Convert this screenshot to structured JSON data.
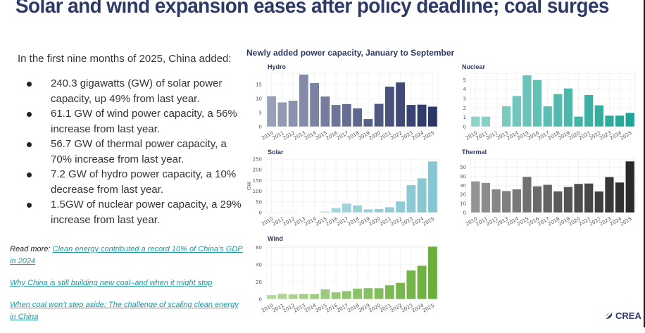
{
  "title": "Solar and wind expansion eases after policy deadline; coal surges",
  "intro": "In the first nine months of 2025, China added:",
  "bullets": [
    "240.3 gigawatts (GW) of solar power capacity, up 49% from last year.",
    "61.1 GW of wind power capacity,  a 56% increase from last year.",
    "56.7 GW of thermal power capacity,  a 70% increase from last year.",
    "7.2 GW of hydro power capacity, a 10% decrease from last year.",
    "1.5GW of nuclear power capacity, a 29% increase from last year."
  ],
  "read_more": {
    "label": "Read more: ",
    "links": [
      "Clean energy contributed a record 10% of China’s GDP in 2024",
      "Why China is still building new coal–and when it might stop",
      "When coal won’t step aside: The challenge of scaling clean energy in China"
    ]
  },
  "logo": {
    "text": "CREA",
    "icon": "crea-leaf-icon"
  },
  "chart_data": [
    {
      "type": "bar",
      "figure_title": "Newly added power capacity, January to September",
      "title": "Hydro",
      "categories": [
        "2010",
        "2011",
        "2012",
        "2013",
        "2014",
        "2015",
        "2016",
        "2017",
        "2018",
        "2019",
        "2020",
        "2021",
        "2022",
        "2023",
        "2024",
        "2025"
      ],
      "values": [
        10.9,
        8.7,
        9.3,
        18.6,
        15.6,
        10.8,
        7.8,
        8.1,
        6.6,
        2.8,
        8.2,
        14.3,
        15.8,
        7.8,
        7.9,
        7.2
      ],
      "ylim": [
        0,
        19
      ],
      "yticks": [
        0,
        5,
        10,
        15
      ],
      "ylabel": "",
      "xlabel": "",
      "color_from": "#9aa0b8",
      "color_to": "#2b3566"
    },
    {
      "type": "bar",
      "title": "Nuclear",
      "categories": [
        "2010",
        "2011",
        "2012",
        "2013",
        "2014",
        "2015",
        "2016",
        "2017",
        "2018",
        "2019",
        "2020",
        "2021",
        "2022",
        "2023",
        "2024",
        "2025"
      ],
      "values": [
        1.1,
        1.1,
        0,
        2.2,
        3.3,
        5.5,
        5.0,
        2.2,
        3.5,
        4.1,
        1.1,
        3.4,
        2.3,
        1.2,
        1.2,
        1.5
      ],
      "ylim": [
        0,
        5.7
      ],
      "yticks": [
        0,
        1,
        2,
        3,
        4,
        5
      ],
      "ylabel": "",
      "xlabel": "",
      "color_from": "#8fd3c9",
      "color_to": "#1fa596"
    },
    {
      "type": "bar",
      "title": "Solar",
      "categories": [
        "2010",
        "2011",
        "2012",
        "2013",
        "2014",
        "2015",
        "2016",
        "2017",
        "2018",
        "2019",
        "2020",
        "2021",
        "2022",
        "2023",
        "2024",
        "2025"
      ],
      "values": [
        0,
        0,
        0,
        2,
        0.5,
        6,
        22,
        43,
        35,
        16,
        18,
        26,
        53,
        129,
        161,
        240
      ],
      "ylim": [
        0,
        250
      ],
      "yticks": [
        0,
        50,
        100,
        150,
        200,
        250
      ],
      "ylabel": "GW",
      "xlabel": "",
      "color_from": "#b5dde4",
      "color_to": "#86c6d0"
    },
    {
      "type": "bar",
      "title": "Thermal",
      "categories": [
        "2010",
        "2011",
        "2012",
        "2013",
        "2014",
        "2015",
        "2016",
        "2017",
        "2018",
        "2019",
        "2020",
        "2021",
        "2022",
        "2023",
        "2024",
        "2025"
      ],
      "values": [
        34.7,
        33.0,
        25.9,
        24.0,
        25.9,
        39.7,
        29.2,
        30.9,
        23.7,
        28.5,
        31.9,
        32.3,
        23.6,
        39.5,
        33.4,
        56.7
      ],
      "ylim": [
        0,
        59
      ],
      "yticks": [
        0,
        10,
        20,
        30,
        40,
        50
      ],
      "ylabel": "",
      "xlabel": "",
      "color_from": "#949494",
      "color_to": "#2a2a2a"
    },
    {
      "type": "bar",
      "title": "Wind",
      "categories": [
        "2010",
        "2011",
        "2012",
        "2013",
        "2014",
        "2015",
        "2016",
        "2017",
        "2018",
        "2019",
        "2020",
        "2021",
        "2022",
        "2023",
        "2024",
        "2025"
      ],
      "values": [
        5,
        6.5,
        5.8,
        6.2,
        6.1,
        11.6,
        8.2,
        9.7,
        12.6,
        13.1,
        13.0,
        16.4,
        19.2,
        33.5,
        39.0,
        61.1
      ],
      "ylim": [
        0,
        62
      ],
      "yticks": [
        0,
        20,
        40,
        60
      ],
      "ylabel": "",
      "xlabel": "",
      "color_from": "#b2d89a",
      "color_to": "#6aaf3c"
    }
  ]
}
